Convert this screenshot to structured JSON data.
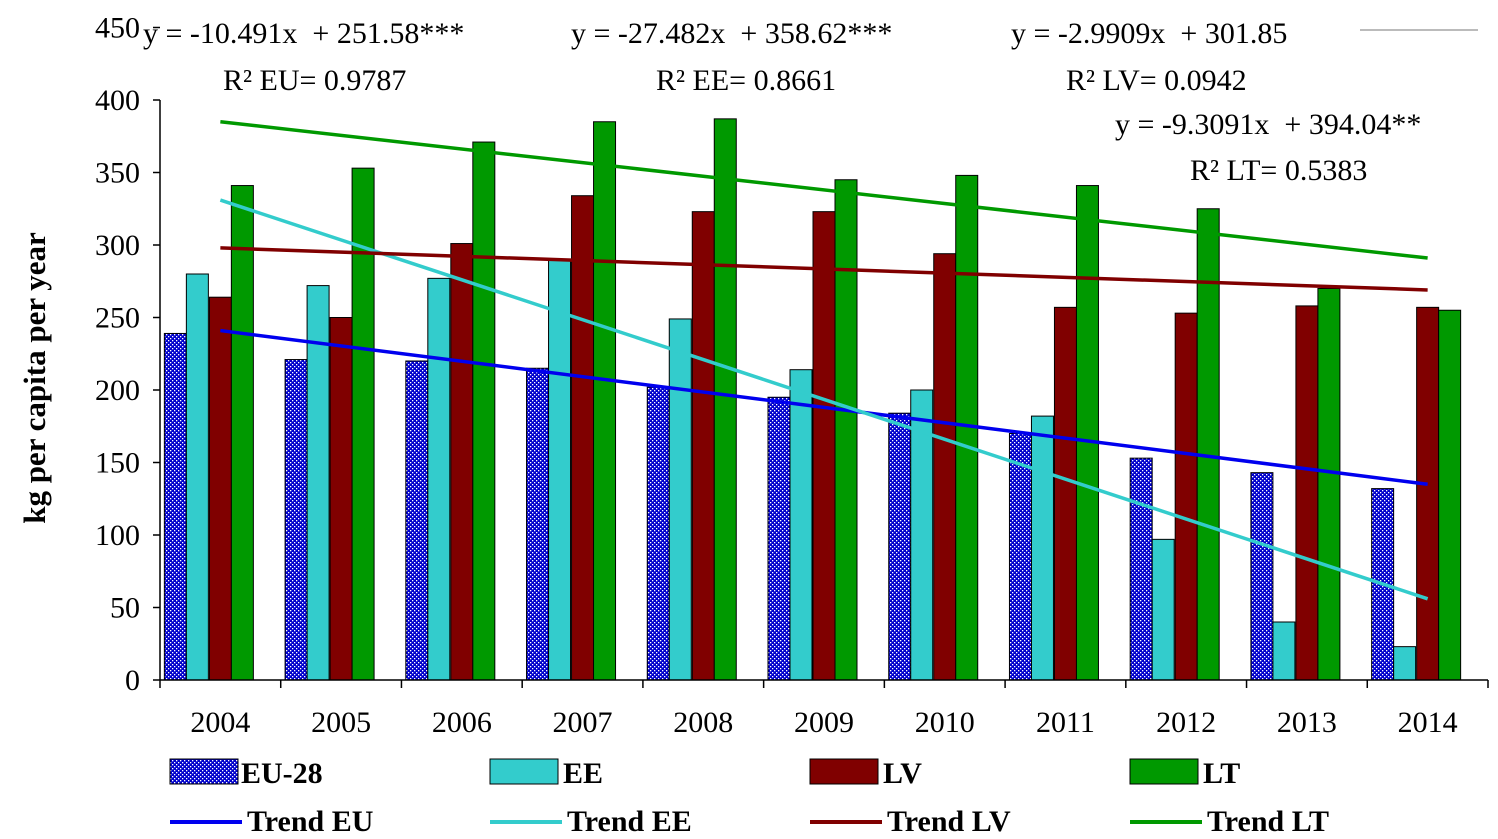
{
  "chart_data": {
    "type": "bar",
    "ylabel": "kg per capita per year",
    "xlabel": "",
    "ylim": [
      0,
      450
    ],
    "yticks": [
      0,
      50,
      100,
      150,
      200,
      250,
      300,
      350,
      400,
      450
    ],
    "grid": false,
    "categories": [
      "2004",
      "2005",
      "2006",
      "2007",
      "2008",
      "2009",
      "2010",
      "2011",
      "2012",
      "2013",
      "2014"
    ],
    "series": [
      {
        "name": "EU-28",
        "color": "#0000cc",
        "pattern": "dotted",
        "values": [
          239,
          221,
          220,
          215,
          202,
          195,
          184,
          170,
          153,
          143,
          132
        ]
      },
      {
        "name": "EE",
        "color": "#33cccc",
        "values": [
          280,
          272,
          277,
          290,
          249,
          214,
          200,
          182,
          97,
          40,
          23
        ]
      },
      {
        "name": "LV",
        "color": "#800000",
        "values": [
          264,
          250,
          301,
          334,
          323,
          323,
          294,
          257,
          253,
          258,
          257
        ]
      },
      {
        "name": "LT",
        "color": "#009900",
        "values": [
          341,
          353,
          371,
          385,
          387,
          345,
          348,
          341,
          325,
          270,
          255
        ]
      }
    ],
    "trends": [
      {
        "name": "Trend EU",
        "color": "#0000ee",
        "start": 241,
        "end": 135
      },
      {
        "name": "Trend EE",
        "color": "#33cccc",
        "start": 331,
        "end": 56
      },
      {
        "name": "Trend LV",
        "color": "#800000",
        "start": 298,
        "end": 269
      },
      {
        "name": "Trend LT",
        "color": "#009900",
        "start": 385,
        "end": 291
      }
    ],
    "annotations": {
      "eu_eq": "y = -10.491x  + 251.58***",
      "eu_r2": "R² EU= 0.9787",
      "ee_eq": "y = -27.482x  + 358.62***",
      "ee_r2": "R² EE= 0.8661",
      "lv_eq": "y = -2.9909x  + 301.85",
      "lv_r2": "R² LV= 0.0942",
      "lt_eq": "y = -9.3091x  + 394.04**",
      "lt_r2": "R² LT= 0.5383"
    },
    "legend_position": "bottom"
  }
}
